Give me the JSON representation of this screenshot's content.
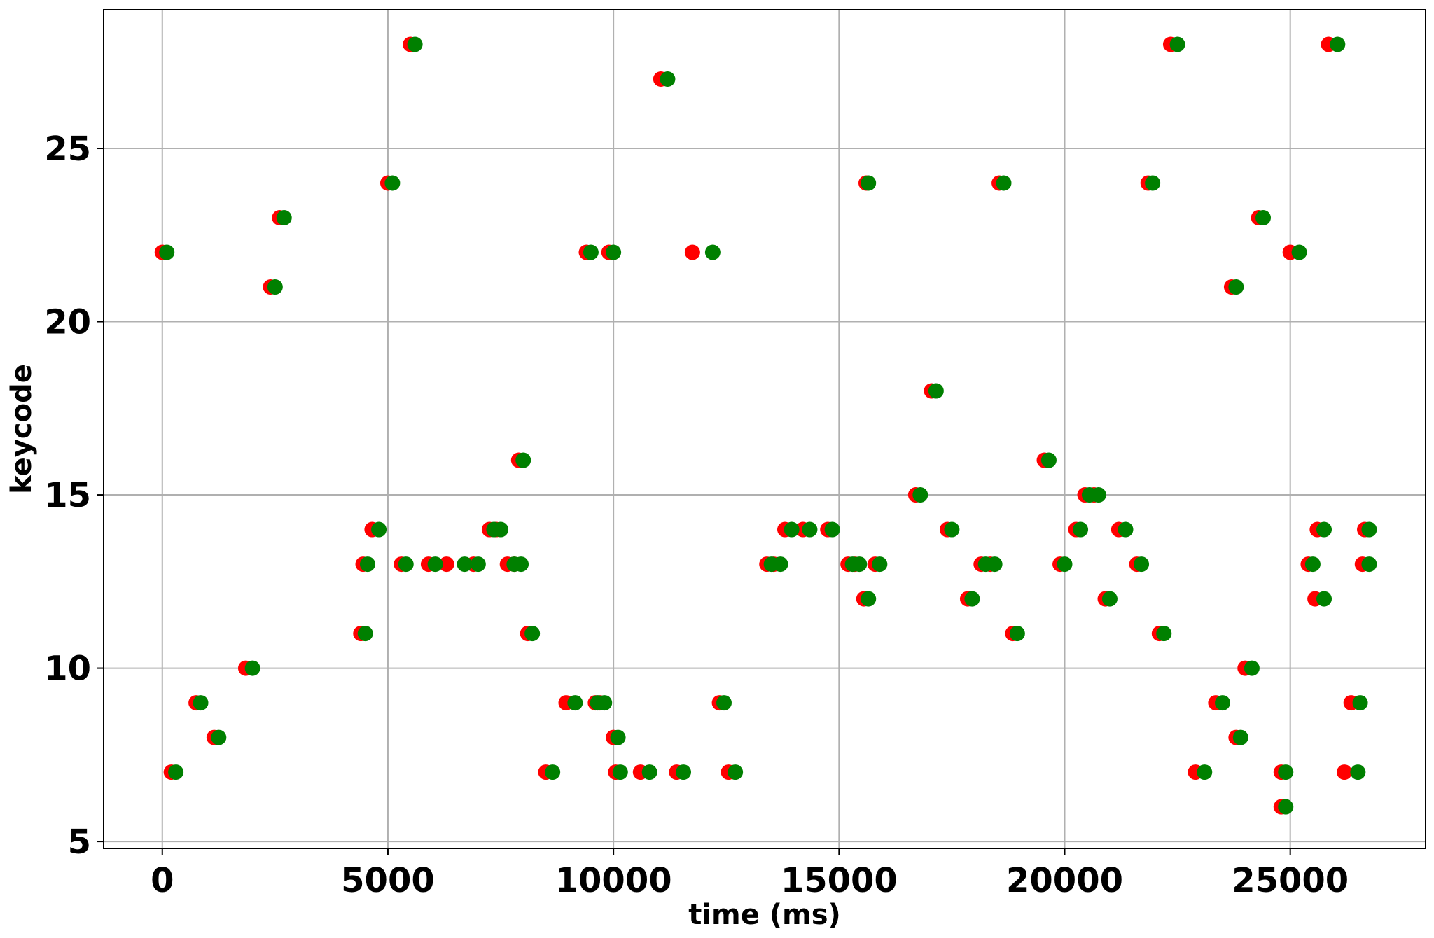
{
  "chart_data": {
    "type": "scatter",
    "title": "",
    "xlabel": "time (ms)",
    "ylabel": "keycode",
    "xlim": [
      -1300,
      28000
    ],
    "ylim": [
      4.8,
      29.0
    ],
    "grid": true,
    "xticks": [
      0,
      5000,
      10000,
      15000,
      20000,
      25000
    ],
    "yticks": [
      5,
      10,
      15,
      20,
      25
    ],
    "series": [
      {
        "color": "#ff0000",
        "points": [
          [
            0,
            22
          ],
          [
            200,
            7
          ],
          [
            750,
            9
          ],
          [
            1150,
            8
          ],
          [
            1850,
            10
          ],
          [
            2400,
            21
          ],
          [
            2600,
            23
          ],
          [
            4400,
            11
          ],
          [
            4450,
            13
          ],
          [
            4650,
            14
          ],
          [
            5000,
            24
          ],
          [
            5300,
            13
          ],
          [
            5500,
            28
          ],
          [
            5900,
            13
          ],
          [
            6300,
            13
          ],
          [
            6900,
            13
          ],
          [
            7250,
            14
          ],
          [
            7400,
            14
          ],
          [
            7650,
            13
          ],
          [
            7800,
            13
          ],
          [
            7900,
            16
          ],
          [
            8100,
            11
          ],
          [
            8500,
            7
          ],
          [
            8950,
            9
          ],
          [
            9400,
            22
          ],
          [
            9600,
            9
          ],
          [
            9700,
            9
          ],
          [
            9900,
            22
          ],
          [
            10000,
            8
          ],
          [
            10050,
            7
          ],
          [
            10600,
            7
          ],
          [
            11050,
            27
          ],
          [
            11400,
            7
          ],
          [
            11750,
            22
          ],
          [
            12350,
            9
          ],
          [
            12550,
            7
          ],
          [
            13400,
            13
          ],
          [
            13550,
            13
          ],
          [
            13800,
            14
          ],
          [
            14200,
            14
          ],
          [
            14750,
            14
          ],
          [
            15200,
            13
          ],
          [
            15350,
            13
          ],
          [
            15600,
            24
          ],
          [
            15550,
            12
          ],
          [
            15800,
            13
          ],
          [
            16700,
            15
          ],
          [
            17050,
            18
          ],
          [
            17400,
            14
          ],
          [
            17850,
            12
          ],
          [
            18150,
            13
          ],
          [
            18350,
            13
          ],
          [
            18550,
            24
          ],
          [
            18850,
            11
          ],
          [
            19550,
            16
          ],
          [
            19900,
            13
          ],
          [
            20250,
            14
          ],
          [
            20450,
            15
          ],
          [
            20650,
            15
          ],
          [
            20900,
            12
          ],
          [
            21200,
            14
          ],
          [
            21600,
            13
          ],
          [
            21850,
            24
          ],
          [
            22100,
            11
          ],
          [
            22350,
            28
          ],
          [
            22900,
            7
          ],
          [
            23350,
            9
          ],
          [
            23700,
            21
          ],
          [
            23800,
            8
          ],
          [
            24000,
            10
          ],
          [
            24300,
            23
          ],
          [
            24800,
            7
          ],
          [
            24800,
            6
          ],
          [
            25000,
            22
          ],
          [
            25400,
            13
          ],
          [
            25550,
            12
          ],
          [
            25600,
            14
          ],
          [
            25850,
            28
          ],
          [
            26200,
            7
          ],
          [
            26350,
            9
          ],
          [
            26600,
            13
          ],
          [
            26650,
            14
          ]
        ]
      },
      {
        "color": "#008000",
        "points": [
          [
            100,
            22
          ],
          [
            300,
            7
          ],
          [
            850,
            9
          ],
          [
            1250,
            8
          ],
          [
            2000,
            10
          ],
          [
            2500,
            21
          ],
          [
            2700,
            23
          ],
          [
            4500,
            11
          ],
          [
            4550,
            13
          ],
          [
            4800,
            14
          ],
          [
            5100,
            24
          ],
          [
            5400,
            13
          ],
          [
            5600,
            28
          ],
          [
            6050,
            13
          ],
          [
            6700,
            13
          ],
          [
            7000,
            13
          ],
          [
            7350,
            14
          ],
          [
            7500,
            14
          ],
          [
            7800,
            13
          ],
          [
            7950,
            13
          ],
          [
            8000,
            16
          ],
          [
            8200,
            11
          ],
          [
            8650,
            7
          ],
          [
            9150,
            9
          ],
          [
            9500,
            22
          ],
          [
            9650,
            9
          ],
          [
            9800,
            9
          ],
          [
            10000,
            22
          ],
          [
            10100,
            8
          ],
          [
            10150,
            7
          ],
          [
            10800,
            7
          ],
          [
            11200,
            27
          ],
          [
            11550,
            7
          ],
          [
            12200,
            22
          ],
          [
            12450,
            9
          ],
          [
            12700,
            7
          ],
          [
            13500,
            13
          ],
          [
            13700,
            13
          ],
          [
            13950,
            14
          ],
          [
            14350,
            14
          ],
          [
            14850,
            14
          ],
          [
            15300,
            13
          ],
          [
            15450,
            13
          ],
          [
            15650,
            24
          ],
          [
            15650,
            12
          ],
          [
            15900,
            13
          ],
          [
            16800,
            15
          ],
          [
            17150,
            18
          ],
          [
            17500,
            14
          ],
          [
            17950,
            12
          ],
          [
            18250,
            13
          ],
          [
            18450,
            13
          ],
          [
            18650,
            24
          ],
          [
            18950,
            11
          ],
          [
            19650,
            16
          ],
          [
            20000,
            13
          ],
          [
            20350,
            14
          ],
          [
            20550,
            15
          ],
          [
            20750,
            15
          ],
          [
            21000,
            12
          ],
          [
            21350,
            14
          ],
          [
            21700,
            13
          ],
          [
            21950,
            24
          ],
          [
            22200,
            11
          ],
          [
            22500,
            28
          ],
          [
            23100,
            7
          ],
          [
            23500,
            9
          ],
          [
            23800,
            21
          ],
          [
            23900,
            8
          ],
          [
            24150,
            10
          ],
          [
            24400,
            23
          ],
          [
            24900,
            7
          ],
          [
            24900,
            6
          ],
          [
            25200,
            22
          ],
          [
            25500,
            13
          ],
          [
            25750,
            12
          ],
          [
            25750,
            14
          ],
          [
            26050,
            28
          ],
          [
            26500,
            7
          ],
          [
            26550,
            9
          ],
          [
            26750,
            13
          ],
          [
            26750,
            14
          ]
        ]
      }
    ]
  }
}
